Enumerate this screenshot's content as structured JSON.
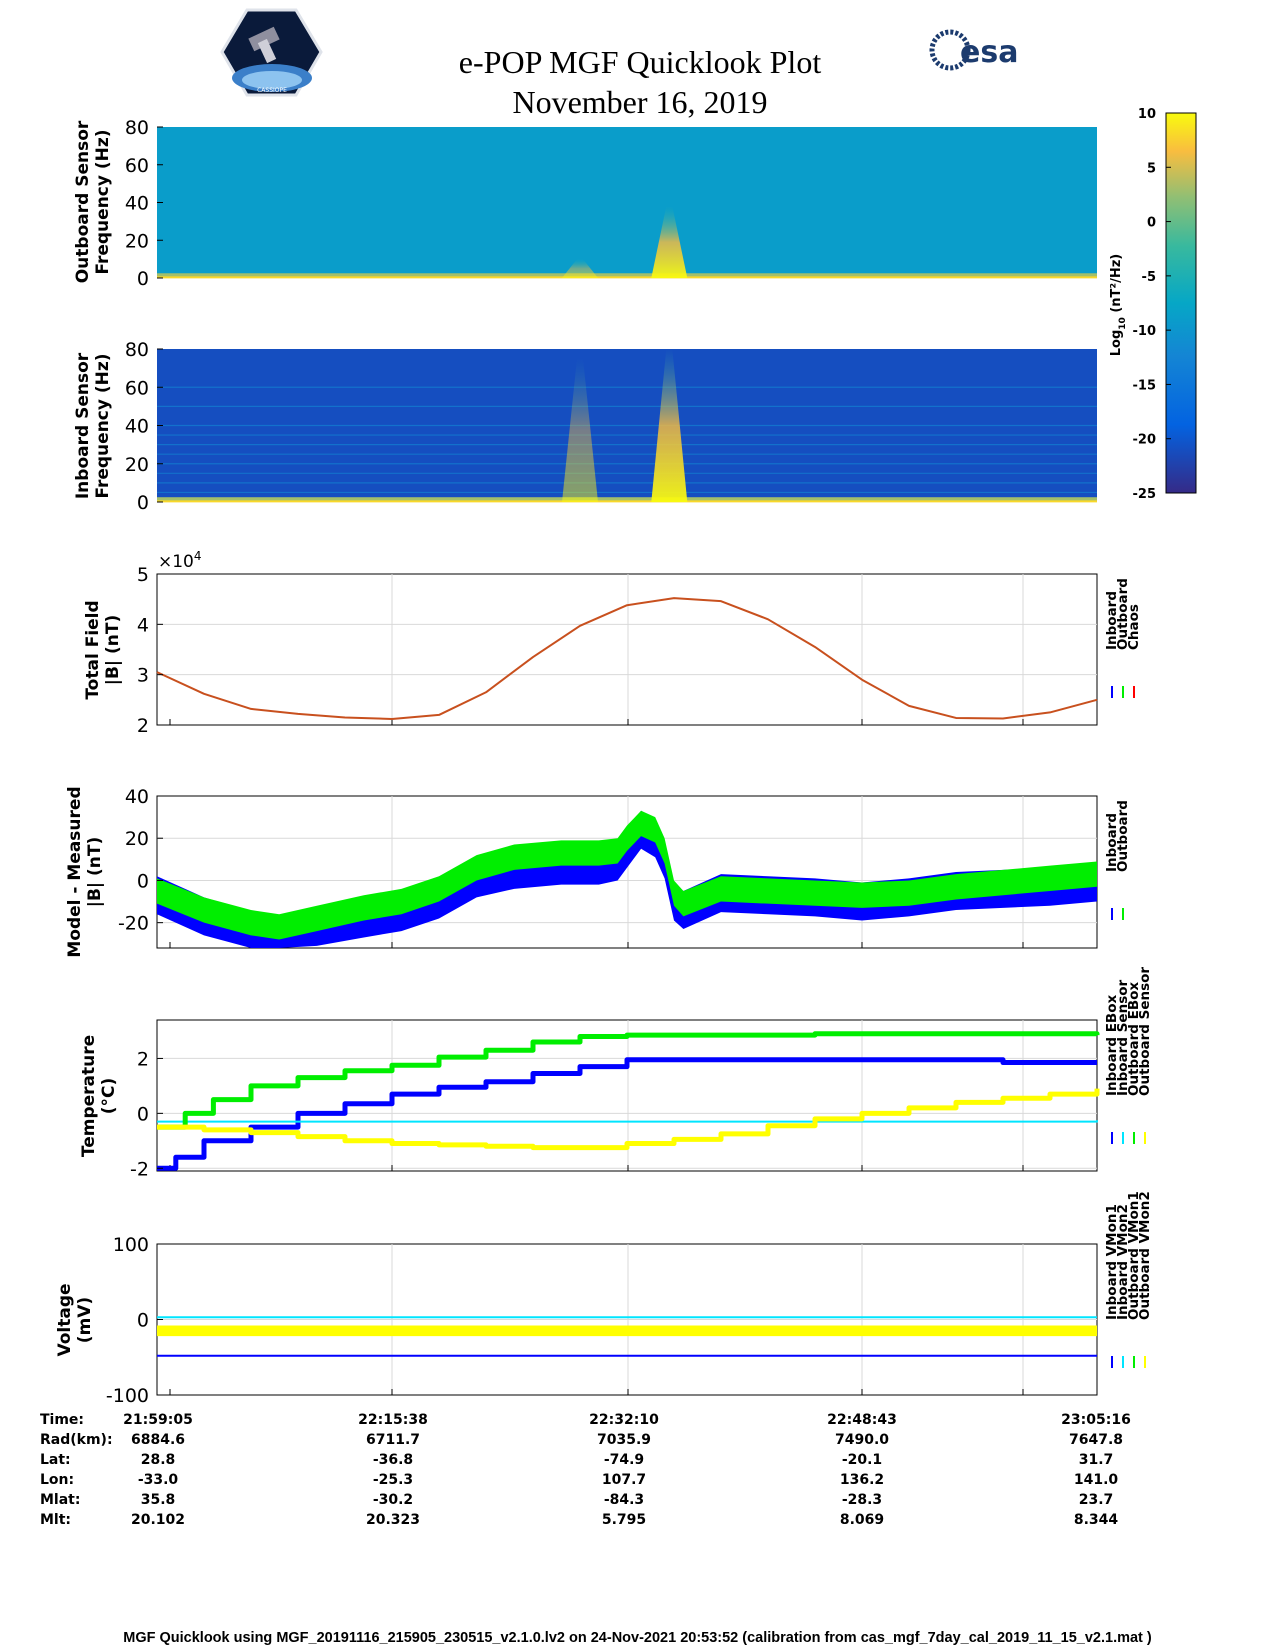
{
  "header": {
    "title": "e-POP MGF Quicklook Plot",
    "date": "November 16, 2019",
    "left_logo": "cassiope-mission-logo",
    "left_logo_text": "CASSIOPE",
    "right_logo_text": "esa"
  },
  "colors": {
    "blue": "#0000ff",
    "green": "#00ee00",
    "cyan": "#00e5ff",
    "yellow": "#ffff00",
    "red": "#ff0000",
    "chaos": "#c8501e"
  },
  "colorbar": {
    "label_main": "Log",
    "label_sub": "10",
    "label_units": " (nT²/Hz)",
    "ticks": [
      10,
      5,
      0,
      -5,
      -10,
      -15,
      -20,
      -25
    ],
    "range": [
      -25,
      10
    ]
  },
  "chart_data": [
    {
      "id": "outboard-spectrogram",
      "type": "heatmap",
      "ylabel": [
        "Outboard Sensor",
        "Frequency (Hz)"
      ],
      "ylim": [
        0,
        80
      ],
      "yticks": [
        0,
        20,
        40,
        60,
        80
      ],
      "background_log10": -9,
      "baseline_band_log10": 3,
      "burst_events": [
        {
          "time_fraction": 0.545,
          "top_hz": 38,
          "intensity": 5
        },
        {
          "time_fraction": 0.45,
          "top_hz": 10,
          "intensity": 0
        }
      ]
    },
    {
      "id": "inboard-spectrogram",
      "type": "heatmap",
      "ylabel": [
        "Inboard Sensor",
        "Frequency (Hz)"
      ],
      "ylim": [
        0,
        80
      ],
      "yticks": [
        0,
        20,
        40,
        60,
        80
      ],
      "background_log10": -21,
      "harmonic_lines_hz": [
        5,
        10,
        15,
        20,
        25,
        30,
        35,
        40,
        50,
        60
      ],
      "burst_events": [
        {
          "time_fraction": 0.545,
          "top_hz": 80,
          "intensity": 5
        },
        {
          "time_fraction": 0.45,
          "top_hz": 75,
          "intensity": -8
        }
      ]
    },
    {
      "id": "total-field",
      "type": "line",
      "ylabel": [
        "Total Field",
        "|B| (nT)"
      ],
      "ylim": [
        2,
        5
      ],
      "yticks": [
        2,
        3,
        4,
        5
      ],
      "yscale_label": "×10",
      "yscale_exponent": "4",
      "legend": [
        "Inboard",
        "Outboard",
        "Chaos"
      ],
      "legend_colors": [
        "blue",
        "green",
        "red"
      ],
      "x": [
        0,
        0.05,
        0.1,
        0.15,
        0.2,
        0.25,
        0.3,
        0.35,
        0.4,
        0.45,
        0.5,
        0.55,
        0.6,
        0.65,
        0.7,
        0.75,
        0.8,
        0.85,
        0.9,
        0.95,
        1.0
      ],
      "y": [
        3.05,
        2.62,
        2.32,
        2.22,
        2.15,
        2.12,
        2.2,
        2.65,
        3.35,
        3.97,
        4.38,
        4.52,
        4.46,
        4.1,
        3.55,
        2.9,
        2.38,
        2.14,
        2.13,
        2.25,
        2.5
      ]
    },
    {
      "id": "model-measured",
      "type": "line",
      "ylabel": [
        "Model - Measured",
        "|B| (nT)"
      ],
      "ylim": [
        -32,
        40
      ],
      "yticks": [
        -20,
        0,
        20,
        40
      ],
      "legend": [
        "Inboard",
        "Outboard"
      ],
      "legend_colors": [
        "blue",
        "green"
      ],
      "series": [
        {
          "name": "Inboard",
          "color": "blue",
          "band_width": 18,
          "x": [
            0,
            0.05,
            0.1,
            0.13,
            0.17,
            0.22,
            0.26,
            0.3,
            0.34,
            0.38,
            0.43,
            0.47,
            0.49,
            0.5,
            0.515,
            0.53,
            0.54,
            0.55,
            0.56,
            0.6,
            0.65,
            0.7,
            0.75,
            0.8,
            0.85,
            0.9,
            0.95,
            1.0
          ],
          "y": [
            -7,
            -17,
            -24,
            -26,
            -22,
            -18,
            -15,
            -9,
            1,
            5,
            7,
            7,
            9,
            15,
            24,
            20,
            10,
            -10,
            -14,
            -6,
            -7,
            -8,
            -10,
            -8,
            -5,
            -4,
            -3,
            -1
          ]
        },
        {
          "name": "Outboard",
          "color": "green",
          "band_width": 12,
          "x": [
            0,
            0.05,
            0.1,
            0.13,
            0.17,
            0.22,
            0.26,
            0.3,
            0.34,
            0.38,
            0.43,
            0.47,
            0.49,
            0.5,
            0.515,
            0.53,
            0.54,
            0.55,
            0.56,
            0.6,
            0.65,
            0.7,
            0.75,
            0.8,
            0.85,
            0.9,
            0.95,
            1.0
          ],
          "y": [
            -5,
            -14,
            -20,
            -22,
            -18,
            -13,
            -10,
            -4,
            6,
            11,
            13,
            13,
            14,
            20,
            27,
            24,
            14,
            -6,
            -11,
            -4,
            -5,
            -6,
            -7,
            -6,
            -3,
            -1,
            1,
            3
          ]
        }
      ]
    },
    {
      "id": "temperature",
      "type": "line",
      "ylabel": [
        "Temperature",
        "(°C)"
      ],
      "ylim": [
        -2.1,
        3.4
      ],
      "yticks": [
        -2,
        0,
        2
      ],
      "legend": [
        "Inboard EBox",
        "Inboard Sensor",
        "Outboard EBox",
        "Outboard Sensor"
      ],
      "legend_colors": [
        "blue",
        "cyan",
        "green",
        "yellow"
      ],
      "series": [
        {
          "name": "Inboard EBox",
          "color": "blue",
          "x": [
            0,
            0.02,
            0.05,
            0.1,
            0.15,
            0.2,
            0.25,
            0.3,
            0.35,
            0.4,
            0.45,
            0.5,
            0.55,
            0.6,
            0.7,
            0.8,
            0.88,
            0.9,
            1.0
          ],
          "y": [
            -2.0,
            -1.6,
            -1.0,
            -0.5,
            0.0,
            0.35,
            0.7,
            0.95,
            1.15,
            1.45,
            1.7,
            1.95,
            1.95,
            1.95,
            1.95,
            1.95,
            1.95,
            1.85,
            1.85
          ]
        },
        {
          "name": "Inboard Sensor",
          "color": "cyan",
          "x": [
            0,
            0.2,
            0.4,
            0.6,
            0.8,
            1.0
          ],
          "y": [
            -0.3,
            -0.3,
            -0.3,
            -0.3,
            -0.3,
            -0.25
          ]
        },
        {
          "name": "Outboard EBox",
          "color": "green",
          "x": [
            0,
            0.03,
            0.06,
            0.1,
            0.15,
            0.2,
            0.25,
            0.3,
            0.35,
            0.4,
            0.45,
            0.5,
            0.6,
            0.7,
            0.8,
            0.9,
            1.0
          ],
          "y": [
            -0.5,
            0.0,
            0.5,
            1.0,
            1.3,
            1.55,
            1.75,
            2.05,
            2.3,
            2.6,
            2.8,
            2.85,
            2.85,
            2.9,
            2.9,
            2.9,
            2.85
          ]
        },
        {
          "name": "Outboard Sensor",
          "color": "yellow",
          "x": [
            0,
            0.05,
            0.1,
            0.15,
            0.2,
            0.25,
            0.3,
            0.35,
            0.4,
            0.45,
            0.5,
            0.55,
            0.6,
            0.65,
            0.7,
            0.75,
            0.8,
            0.85,
            0.9,
            0.95,
            1.0
          ],
          "y": [
            -0.5,
            -0.6,
            -0.7,
            -0.85,
            -1.0,
            -1.1,
            -1.15,
            -1.2,
            -1.25,
            -1.25,
            -1.1,
            -0.95,
            -0.75,
            -0.45,
            -0.2,
            0.0,
            0.2,
            0.4,
            0.55,
            0.7,
            0.9
          ]
        }
      ]
    },
    {
      "id": "voltage",
      "type": "line",
      "ylabel": [
        "Voltage",
        "(mV)"
      ],
      "ylim": [
        -100,
        100
      ],
      "yticks": [
        -100,
        0,
        100
      ],
      "legend": [
        "Inboard VMon1",
        "Inboard VMon2",
        "Outboard VMon1",
        "Outboard VMon2"
      ],
      "legend_colors": [
        "blue",
        "cyan",
        "green",
        "yellow"
      ],
      "series": [
        {
          "name": "Inboard VMon1",
          "color": "blue",
          "x": [
            0,
            1
          ],
          "y": [
            -48,
            -48
          ]
        },
        {
          "name": "Inboard VMon2",
          "color": "cyan",
          "x": [
            0,
            1
          ],
          "y": [
            3,
            3
          ]
        },
        {
          "name": "Outboard VMon2",
          "color": "yellow",
          "x": [
            0,
            1
          ],
          "y": [
            -15,
            -15
          ],
          "band_width": 14
        }
      ]
    }
  ],
  "time_axis": {
    "labels": [
      "Time:",
      "Rad(km):",
      "Lat:",
      "Lon:",
      "Mlat:",
      "Mlt:"
    ],
    "columns": [
      {
        "time": "21:59:05",
        "rad": "6884.6",
        "lat": "28.8",
        "lon": "-33.0",
        "mlat": "35.8",
        "mlt": "20.102"
      },
      {
        "time": "22:15:38",
        "rad": "6711.7",
        "lat": "-36.8",
        "lon": "-25.3",
        "mlat": "-30.2",
        "mlt": "20.323"
      },
      {
        "time": "22:32:10",
        "rad": "7035.9",
        "lat": "-74.9",
        "lon": "107.7",
        "mlat": "-84.3",
        "mlt": "5.795"
      },
      {
        "time": "22:48:43",
        "rad": "7490.0",
        "lat": "-20.1",
        "lon": "136.2",
        "mlat": "-28.3",
        "mlt": "8.069"
      },
      {
        "time": "23:05:16",
        "rad": "7647.8",
        "lat": "31.7",
        "lon": "141.0",
        "mlat": "23.7",
        "mlt": "8.344"
      }
    ]
  },
  "footer": "MGF Quicklook using MGF_20191116_215905_230515_v2.1.0.lv2 on 24-Nov-2021 20:53:52 (calibration from cas_mgf_7day_cal_2019_11_15_v2.1.mat )"
}
